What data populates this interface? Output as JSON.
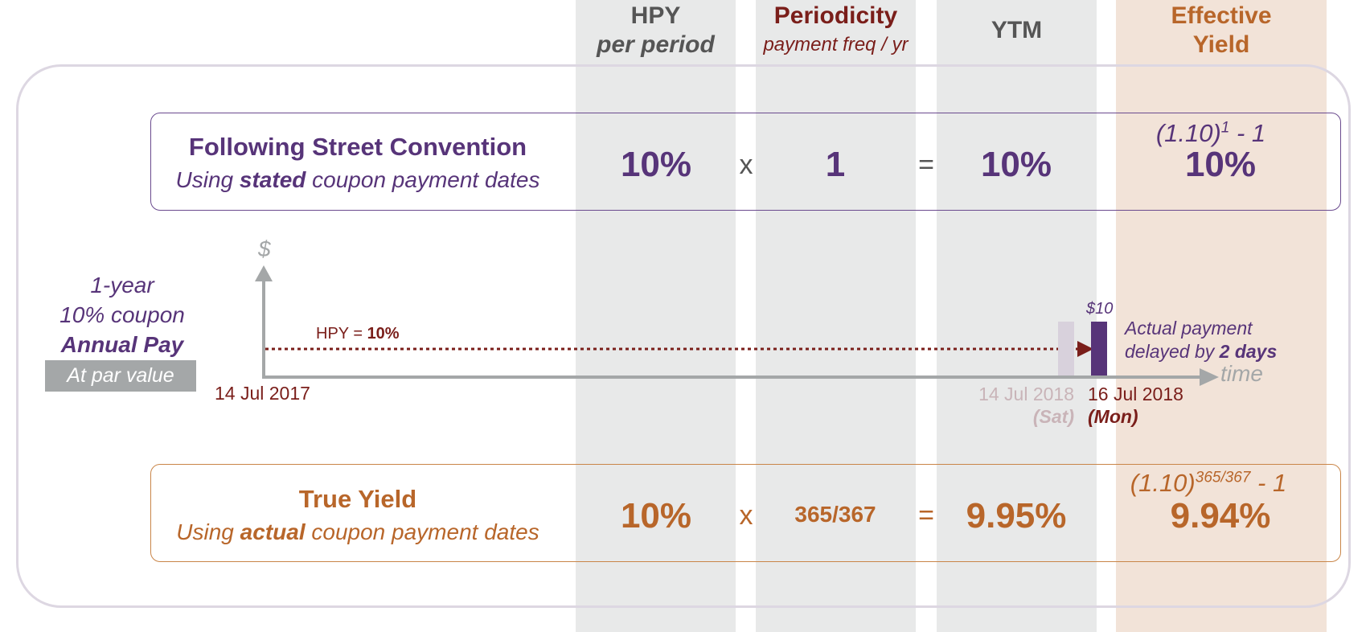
{
  "columns": {
    "hpy": {
      "title": "HPY",
      "subtitle": "per period"
    },
    "periodicity": {
      "title": "Periodicity",
      "subtitle": "payment freq / yr"
    },
    "ytm": {
      "title": "YTM"
    },
    "effective": {
      "title_line1": "Effective",
      "title_line2": "Yield"
    }
  },
  "street": {
    "title": "Following Street Convention",
    "sub_pre": "Using ",
    "sub_bold": "stated",
    "sub_post": " coupon payment dates",
    "hpy": "10%",
    "times": "x",
    "periodicity": "1",
    "equals": "=",
    "ytm": "10%",
    "formula_base": "(1.10)",
    "formula_exp": "1",
    "formula_tail": " - 1",
    "effective": "10%"
  },
  "bond": {
    "line1": "1-year",
    "line2": "10% coupon",
    "line3": "Annual Pay",
    "par_label": "At par value"
  },
  "timeline": {
    "y_axis_label": "$",
    "x_axis_label": "time",
    "start_date": "14 Jul 2017",
    "hpy_prefix": "HPY = ",
    "hpy_value": "10%",
    "stated_date": "14 Jul 2018",
    "stated_day": "(Sat)",
    "actual_date": "16 Jul 2018",
    "actual_day": "(Mon)",
    "payment_amount": "$10",
    "note_line1": "Actual payment",
    "note_pre": "delayed by ",
    "note_bold": "2 days"
  },
  "true_yield": {
    "title": "True Yield",
    "sub_pre": "Using ",
    "sub_bold": "actual",
    "sub_post": " coupon payment dates",
    "hpy": "10%",
    "times": "x",
    "periodicity": "365/367",
    "equals": "=",
    "ytm": "9.95%",
    "formula_base": "(1.10)",
    "formula_exp": "365/367",
    "formula_tail": " - 1",
    "effective": "9.94%"
  },
  "colors": {
    "purple": "#573479",
    "orange": "#b8662a",
    "dark_red": "#7a1e1a",
    "gray_text": "#555555",
    "column_gray": "#e8e9e9",
    "column_peach": "#f2e3d8"
  }
}
